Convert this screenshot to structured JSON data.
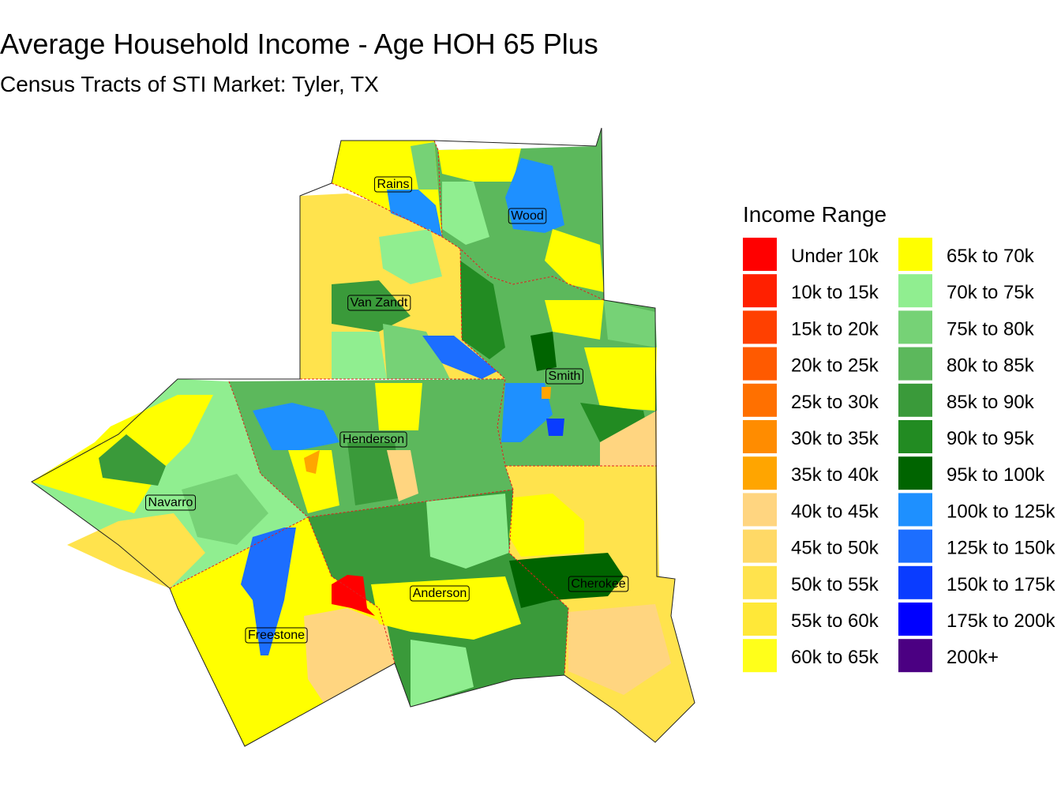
{
  "header": {
    "title": "Average Household Income - Age HOH 65 Plus",
    "subtitle": "Census Tracts of STI Market: Tyler, TX"
  },
  "legend": {
    "title": "Income Range",
    "items": [
      {
        "label": "Under 10k",
        "color": "#ff0000"
      },
      {
        "label": "10k to 15k",
        "color": "#ff2000"
      },
      {
        "label": "15k to 20k",
        "color": "#ff4000"
      },
      {
        "label": "20k to 25k",
        "color": "#ff5a00"
      },
      {
        "label": "25k to 30k",
        "color": "#ff7000"
      },
      {
        "label": "30k to 35k",
        "color": "#ff8c00"
      },
      {
        "label": "35k to 40k",
        "color": "#ffa500"
      },
      {
        "label": "40k to 45k",
        "color": "#ffd580"
      },
      {
        "label": "45k to 50k",
        "color": "#ffd966"
      },
      {
        "label": "50k to 55k",
        "color": "#ffe34d"
      },
      {
        "label": "55k to 60k",
        "color": "#ffe838"
      },
      {
        "label": "60k to 65k",
        "color": "#ffff1a"
      },
      {
        "label": "65k to 70k",
        "color": "#ffff00"
      },
      {
        "label": "70k to 75k",
        "color": "#90ee90"
      },
      {
        "label": "75k to 80k",
        "color": "#76d276"
      },
      {
        "label": "80k to 85k",
        "color": "#5cb85c"
      },
      {
        "label": "85k to 90k",
        "color": "#3a9a3a"
      },
      {
        "label": "90k to 95k",
        "color": "#228b22"
      },
      {
        "label": "95k to 100k",
        "color": "#006400"
      },
      {
        "label": "100k to 125k",
        "color": "#1e90ff"
      },
      {
        "label": "125k to 150k",
        "color": "#1c6eff"
      },
      {
        "label": "150k to 175k",
        "color": "#0a3cff"
      },
      {
        "label": "175k to 200k",
        "color": "#0000ff"
      },
      {
        "label": "200k+",
        "color": "#4b0082"
      }
    ]
  },
  "map": {
    "county_labels": [
      "Rains",
      "Wood",
      "Van Zandt",
      "Smith",
      "Henderson",
      "Navarro",
      "Anderson",
      "Cherokee",
      "Freestone"
    ]
  }
}
